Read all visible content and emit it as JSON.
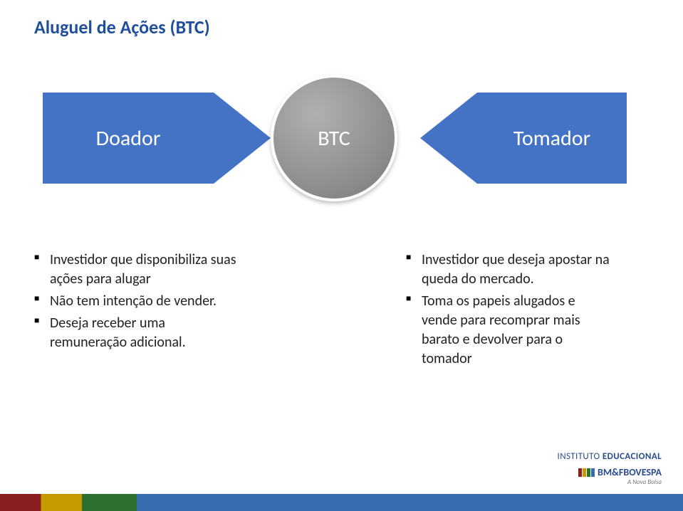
{
  "title": "Aluguel de Ações (BTC)",
  "diagram": {
    "left_shape": {
      "label": "Doador",
      "fill": "#4472c4",
      "text_color": "#ffffff",
      "fontsize": 30
    },
    "center_shape": {
      "label": "BTC",
      "fill_gradient_from": "#b0b0b0",
      "fill_gradient_to": "#7a7a7a",
      "border_color": "#ffffff",
      "text_color": "#ffffff",
      "fontsize": 30
    },
    "right_shape": {
      "label": "Tomador",
      "fill": "#4472c4",
      "text_color": "#ffffff",
      "fontsize": 30
    }
  },
  "bullets_left": [
    "Investidor que disponibiliza suas ações para alugar",
    "Não tem intenção de vender.",
    "Deseja receber uma remuneração adicional."
  ],
  "bullets_right": [
    "Investidor que deseja apostar na queda do mercado.",
    "Toma os papeis alugados e vende para recomprar mais barato e devolver para o tomador"
  ],
  "footer": {
    "line1_light": "INSTITUTO ",
    "line1_bold": "EDUCACIONAL",
    "line2": "BM&FBOVESPA",
    "sub": "A Nova Bolsa",
    "flag_colors": [
      "#8a1e1e",
      "#c49a00",
      "#2e7030",
      "#3a6db0"
    ]
  },
  "strip_colors": [
    "#8a1e1e",
    "#c49a00",
    "#2e7030",
    "#3a6db0"
  ],
  "colors": {
    "title": "#1f4e9c",
    "text": "#222222",
    "background": "#ffffff"
  },
  "fonts": {
    "title_size_pt": 20,
    "body_size_pt": 15,
    "shape_label_size_pt": 22
  }
}
